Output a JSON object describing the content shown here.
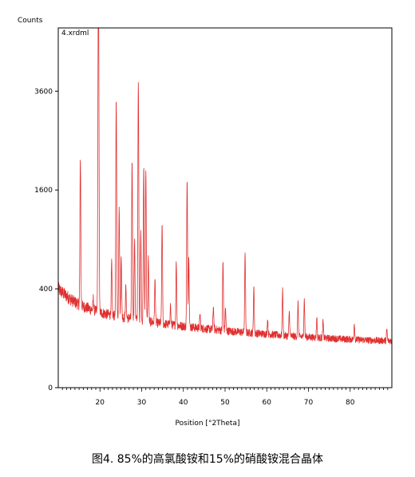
{
  "caption": "图4. 85%的高氯酸铵和15%的硝酸铵混合晶体",
  "chart_data": {
    "type": "line",
    "title": "",
    "file_label": "4.xrdml",
    "xlabel": "Position [°2Theta]",
    "ylabel": "Counts",
    "xlim": [
      10,
      90
    ],
    "ylim": [
      0,
      5300
    ],
    "y_scale": "sqrt",
    "x_ticks": [
      20,
      30,
      40,
      50,
      60,
      70,
      80
    ],
    "y_ticks": [
      0,
      400,
      1600,
      3600
    ],
    "grid": false,
    "line_color": "#e03030",
    "background": {
      "x": [
        10,
        11,
        12,
        13,
        14,
        15,
        16,
        18,
        20,
        22,
        25,
        28,
        30,
        33,
        35,
        38,
        40,
        43,
        45,
        48,
        50,
        55,
        60,
        65,
        70,
        75,
        80,
        85,
        90
      ],
      "y": [
        400,
        370,
        345,
        320,
        300,
        285,
        270,
        250,
        232,
        220,
        205,
        195,
        185,
        175,
        168,
        160,
        155,
        148,
        143,
        138,
        133,
        125,
        118,
        110,
        105,
        100,
        96,
        92,
        90
      ]
    },
    "peaks": [
      {
        "x": 15.3,
        "y": 2150
      },
      {
        "x": 18.4,
        "y": 330
      },
      {
        "x": 19.6,
        "y": 5300
      },
      {
        "x": 19.7,
        "y": 2750
      },
      {
        "x": 22.8,
        "y": 650
      },
      {
        "x": 23.9,
        "y": 3400
      },
      {
        "x": 24.6,
        "y": 1350
      },
      {
        "x": 25.1,
        "y": 720
      },
      {
        "x": 26.2,
        "y": 420
      },
      {
        "x": 27.7,
        "y": 2100
      },
      {
        "x": 28.3,
        "y": 900
      },
      {
        "x": 29.2,
        "y": 3800
      },
      {
        "x": 29.8,
        "y": 1000
      },
      {
        "x": 30.5,
        "y": 2000
      },
      {
        "x": 31.0,
        "y": 1950
      },
      {
        "x": 31.6,
        "y": 700
      },
      {
        "x": 33.2,
        "y": 480
      },
      {
        "x": 34.9,
        "y": 1100
      },
      {
        "x": 36.9,
        "y": 280
      },
      {
        "x": 38.3,
        "y": 650
      },
      {
        "x": 40.9,
        "y": 1750
      },
      {
        "x": 41.3,
        "y": 700
      },
      {
        "x": 44.0,
        "y": 220
      },
      {
        "x": 47.2,
        "y": 270
      },
      {
        "x": 49.5,
        "y": 650
      },
      {
        "x": 50.1,
        "y": 260
      },
      {
        "x": 54.8,
        "y": 730
      },
      {
        "x": 56.9,
        "y": 420
      },
      {
        "x": 60.2,
        "y": 190
      },
      {
        "x": 63.8,
        "y": 400
      },
      {
        "x": 65.4,
        "y": 240
      },
      {
        "x": 67.5,
        "y": 300
      },
      {
        "x": 69.0,
        "y": 320
      },
      {
        "x": 72.0,
        "y": 200
      },
      {
        "x": 73.5,
        "y": 180
      },
      {
        "x": 81.0,
        "y": 170
      },
      {
        "x": 88.8,
        "y": 140
      }
    ]
  }
}
